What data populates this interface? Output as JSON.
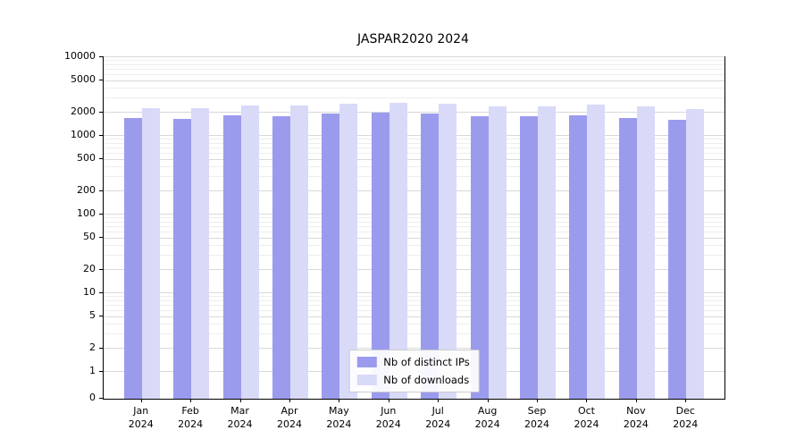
{
  "chart_data": {
    "type": "bar",
    "title": "JASPAR2020 2024",
    "categories": [
      "Jan 2024",
      "Feb 2024",
      "Mar 2024",
      "Apr 2024",
      "May 2024",
      "Jun 2024",
      "Jul 2024",
      "Aug 2024",
      "Sep 2024",
      "Oct 2024",
      "Nov 2024",
      "Dec 2024"
    ],
    "series": [
      {
        "name": "Nb of distinct IPs",
        "color": "#9b9bee",
        "values": [
          1700,
          1650,
          1850,
          1800,
          1900,
          2000,
          1900,
          1800,
          1800,
          1850,
          1700,
          1600
        ]
      },
      {
        "name": "Nb of downloads",
        "color": "#d9d9f8",
        "values": [
          2250,
          2250,
          2450,
          2450,
          2550,
          2650,
          2550,
          2400,
          2350,
          2500,
          2350,
          2200
        ]
      }
    ],
    "yscale": "symlog",
    "yticks": [
      0,
      1,
      2,
      5,
      10,
      20,
      50,
      100,
      200,
      500,
      1000,
      2000,
      5000,
      10000
    ],
    "ylim": [
      0,
      10000
    ],
    "grid": true,
    "legend_position": "lower center"
  }
}
